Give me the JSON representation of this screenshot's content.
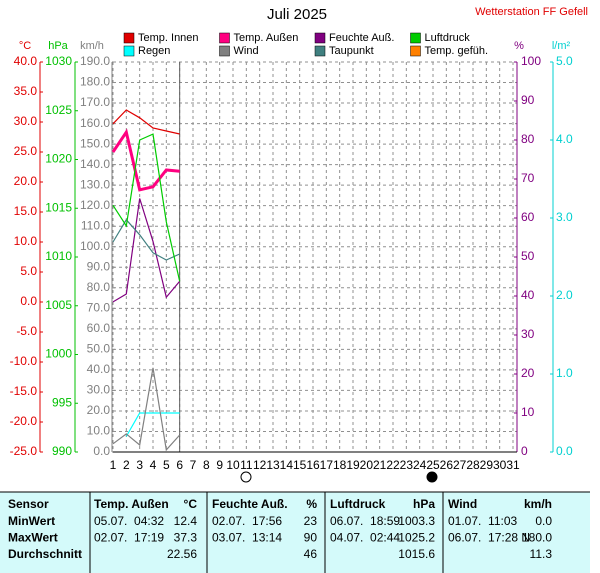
{
  "chart_data": {
    "type": "line",
    "title": "Juli 2025",
    "subtitle": "Wetterstation FF Gefell",
    "x": [
      1,
      2,
      3,
      4,
      5,
      6
    ],
    "xlim": [
      1,
      31
    ],
    "xticks": [
      1,
      2,
      3,
      4,
      5,
      6,
      7,
      8,
      9,
      10,
      11,
      12,
      13,
      14,
      15,
      16,
      17,
      18,
      19,
      20,
      21,
      22,
      23,
      24,
      25,
      26,
      27,
      28,
      29,
      30,
      31
    ],
    "today": 6,
    "grid": true,
    "axes": [
      {
        "label": "°C",
        "color": "#e00000",
        "lim": [
          -25,
          40
        ],
        "ticks": [
          {
            "value": 40,
            "label": "40.0"
          },
          {
            "value": 35,
            "label": "35.0"
          },
          {
            "value": 30,
            "label": "30.0"
          },
          {
            "value": 25,
            "label": "25.0"
          },
          {
            "value": 20,
            "label": "20.0"
          },
          {
            "value": 15,
            "label": "15.0"
          },
          {
            "value": 10,
            "label": "10.0"
          },
          {
            "value": 5,
            "label": "5.0"
          },
          {
            "value": 0,
            "label": "0.0"
          },
          {
            "value": -5,
            "label": "-5.0"
          },
          {
            "value": -10,
            "label": "-10.0"
          },
          {
            "value": -15,
            "label": "-15.0"
          },
          {
            "value": -20,
            "label": "-20.0"
          },
          {
            "value": -25,
            "label": "-25.0"
          }
        ]
      },
      {
        "label": "hPa",
        "color": "#00c000",
        "lim": [
          990,
          1030
        ],
        "ticks": [
          1030,
          1025,
          1020,
          1015,
          1010,
          1005,
          1000,
          995,
          990
        ]
      },
      {
        "label": "km/h",
        "color": "#808080",
        "lim": [
          0,
          190
        ],
        "ticks": [
          {
            "value": 190,
            "label": "190.0"
          },
          {
            "value": 180,
            "label": "180.0"
          },
          {
            "value": 170,
            "label": "170.0"
          },
          {
            "value": 160,
            "label": "160.0"
          },
          {
            "value": 150,
            "label": "150.0"
          },
          {
            "value": 140,
            "label": "140.0"
          },
          {
            "value": 130,
            "label": "130.0"
          },
          {
            "value": 120,
            "label": "120.0"
          },
          {
            "value": 110,
            "label": "110.0"
          },
          {
            "value": 100,
            "label": "100.0"
          },
          {
            "value": 90,
            "label": "90.0"
          },
          {
            "value": 80,
            "label": "80.0"
          },
          {
            "value": 70,
            "label": "70.0"
          },
          {
            "value": 60,
            "label": "60.0"
          },
          {
            "value": 50,
            "label": "50.0"
          },
          {
            "value": 40,
            "label": "40.0"
          },
          {
            "value": 30,
            "label": "30.0"
          },
          {
            "value": 20,
            "label": "20.0"
          },
          {
            "value": 10,
            "label": "10.0"
          },
          {
            "value": 0,
            "label": "0.0"
          }
        ]
      },
      {
        "label": "%",
        "color": "#800080",
        "lim": [
          0,
          100
        ],
        "ticks": [
          100,
          90,
          80,
          70,
          60,
          50,
          40,
          30,
          20,
          10,
          0
        ]
      },
      {
        "label": "l/m²",
        "color": "#00d0d0",
        "lim": [
          0,
          5
        ],
        "ticks": [
          {
            "value": 5,
            "label": "5.0"
          },
          {
            "value": 4,
            "label": "4.0"
          },
          {
            "value": 3,
            "label": "3.0"
          },
          {
            "value": 2,
            "label": "2.0"
          },
          {
            "value": 1,
            "label": "1.0"
          },
          {
            "value": 0,
            "label": "0.0"
          }
        ]
      }
    ],
    "series": [
      {
        "name": "Temp. Innen",
        "color": "#e00000",
        "axis": 0,
        "values": [
          29.7,
          32,
          30.7,
          29,
          28.5,
          28
        ]
      },
      {
        "name": "Regen",
        "color": "#00ffff",
        "axis": 4,
        "values": [
          null,
          0.2,
          0.5,
          0.5,
          0.5,
          0.5
        ]
      },
      {
        "name": "Temp. Außen",
        "color": "#ff0080",
        "axis": 0,
        "width": 3,
        "values": [
          25,
          28.3,
          18.7,
          19.2,
          22,
          21.8
        ]
      },
      {
        "name": "Wind",
        "color": "#808080",
        "axis": 2,
        "values": [
          4,
          8.8,
          3.4,
          41,
          1,
          8.3
        ]
      },
      {
        "name": "Feuchte Auß.",
        "color": "#800080",
        "axis": 3,
        "values": [
          38.5,
          40.5,
          65,
          54,
          39.7,
          43.8
        ]
      },
      {
        "name": "Taupunkt",
        "color": "#408080",
        "axis": 0,
        "values": [
          10,
          13.7,
          11.2,
          8.2,
          7,
          8
        ]
      },
      {
        "name": "Luftdruck",
        "color": "#00cc00",
        "axis": 1,
        "values": [
          1015.3,
          1013.2,
          1022,
          1022.6,
          1013.6,
          1007.5
        ]
      },
      {
        "name": "Temp. gefüh.",
        "color": "#ff8000",
        "axis": 0,
        "values": [
          null,
          null,
          null,
          null,
          null,
          null
        ]
      }
    ]
  },
  "table": {
    "header": [
      "Sensor",
      "Temp. Außen",
      "°C",
      "Feuchte Auß.",
      "%",
      "Luftdruck",
      "hPa",
      "Wind",
      "km/h"
    ],
    "rows": [
      [
        "MinWert",
        "05.07.  04:32",
        "12.4",
        "02.07.  17:56",
        "23",
        "06.07.  18:59",
        "1003.3",
        "01.07.  11:03",
        "0.0"
      ],
      [
        "MaxWert",
        "02.07.  17:19",
        "37.3",
        "03.07.  13:14",
        "90",
        "04.07.  02:44",
        "1025.2",
        "06.07.  17:28 N",
        "180.0"
      ],
      [
        "Durchschnitt",
        null,
        "22.56",
        null,
        "46",
        null,
        "1015.6",
        null,
        "11.3"
      ]
    ]
  }
}
